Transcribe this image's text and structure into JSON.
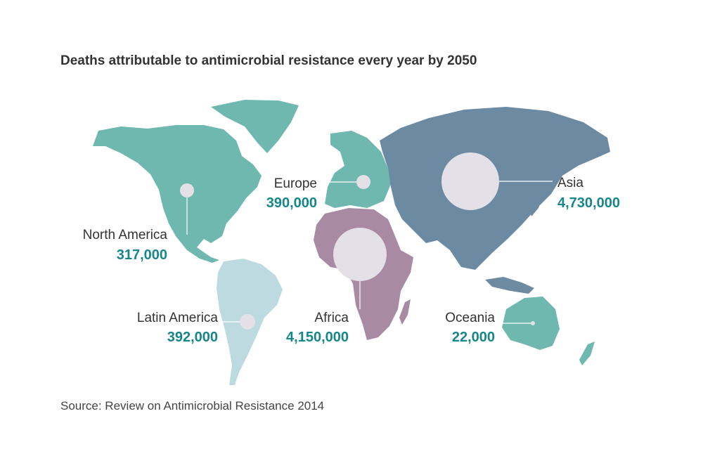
{
  "title": "Deaths attributable to antimicrobial resistance every year by 2050",
  "source": "Source: Review on Antimicrobial Resistance 2014",
  "colors": {
    "value_text": "#17868a",
    "americas_europe_oceania": "#6fb8af",
    "latin_america": "#bcdadf",
    "africa": "#a98aa3",
    "asia": "#6d8aa3",
    "bubble": "#e3e0e8"
  },
  "regions": [
    {
      "name": "North America",
      "value_label": "317,000",
      "deaths": 317000
    },
    {
      "name": "Latin America",
      "value_label": "392,000",
      "deaths": 392000
    },
    {
      "name": "Europe",
      "value_label": "390,000",
      "deaths": 390000
    },
    {
      "name": "Africa",
      "value_label": "4,150,000",
      "deaths": 4150000
    },
    {
      "name": "Asia",
      "value_label": "4,730,000",
      "deaths": 4730000
    },
    {
      "name": "Oceania",
      "value_label": "22,000",
      "deaths": 22000
    }
  ]
}
